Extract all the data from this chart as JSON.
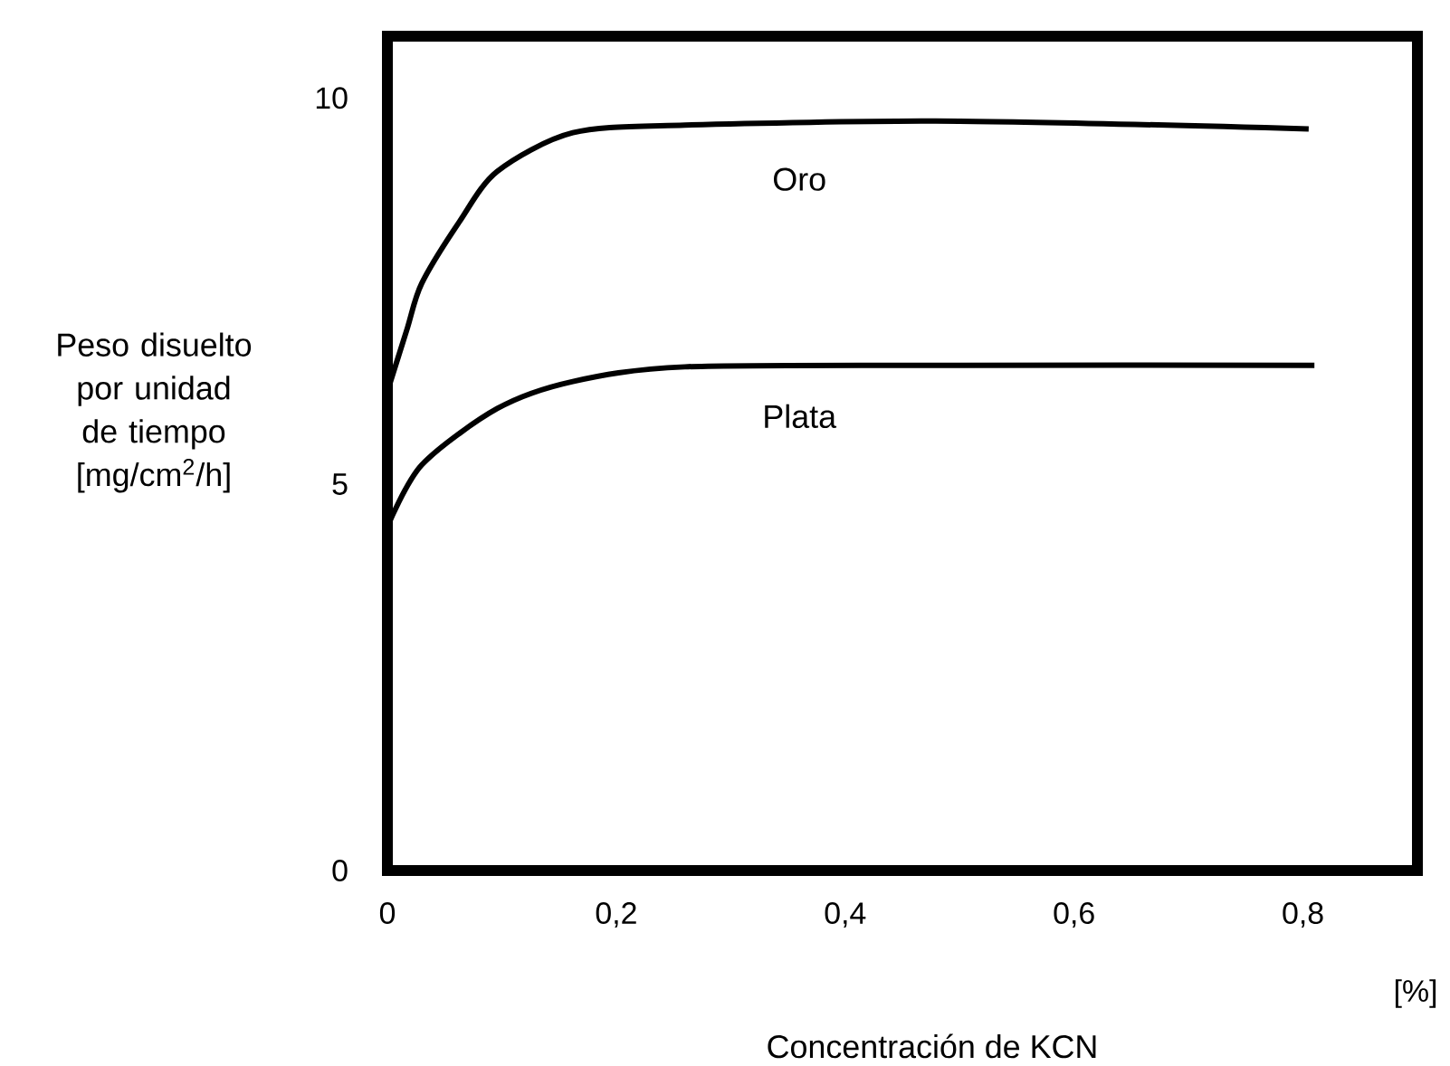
{
  "chart_data": {
    "type": "line",
    "xlabel": "Concentración de KCN",
    "ylabel": "Peso disuelto por unidad de tiempo [mg/cm$^{2}$/h]",
    "xlim": [
      0,
      0.9
    ],
    "ylim": [
      0,
      10.8
    ],
    "xticks": [
      {
        "value": 0,
        "label": "0"
      },
      {
        "value": 0.2,
        "label": "0,2"
      },
      {
        "value": 0.4,
        "label": "0,4"
      },
      {
        "value": 0.6,
        "label": "0,6"
      },
      {
        "value": 0.8,
        "label": "0,8"
      }
    ],
    "yticks": [
      0,
      5,
      10
    ],
    "grid": false,
    "legend": false,
    "marker": "none",
    "line_style": "solid",
    "series": [
      {
        "name": "Oro",
        "color": "#000000",
        "x": [
          0,
          0.017,
          0.03,
          0.063,
          0.096,
          0.162,
          0.26,
          0.5,
          0.805
        ],
        "values": [
          6.2,
          7.0,
          7.6,
          8.4,
          9.05,
          9.55,
          9.65,
          9.7,
          9.6
        ]
      },
      {
        "name": "Plata",
        "color": "#000000",
        "x": [
          0,
          0.03,
          0.096,
          0.162,
          0.26,
          0.5,
          0.81
        ],
        "values": [
          4.45,
          5.25,
          5.98,
          6.33,
          6.52,
          6.54,
          6.54
        ]
      }
    ],
    "annotations": [
      "[%]"
    ]
  }
}
